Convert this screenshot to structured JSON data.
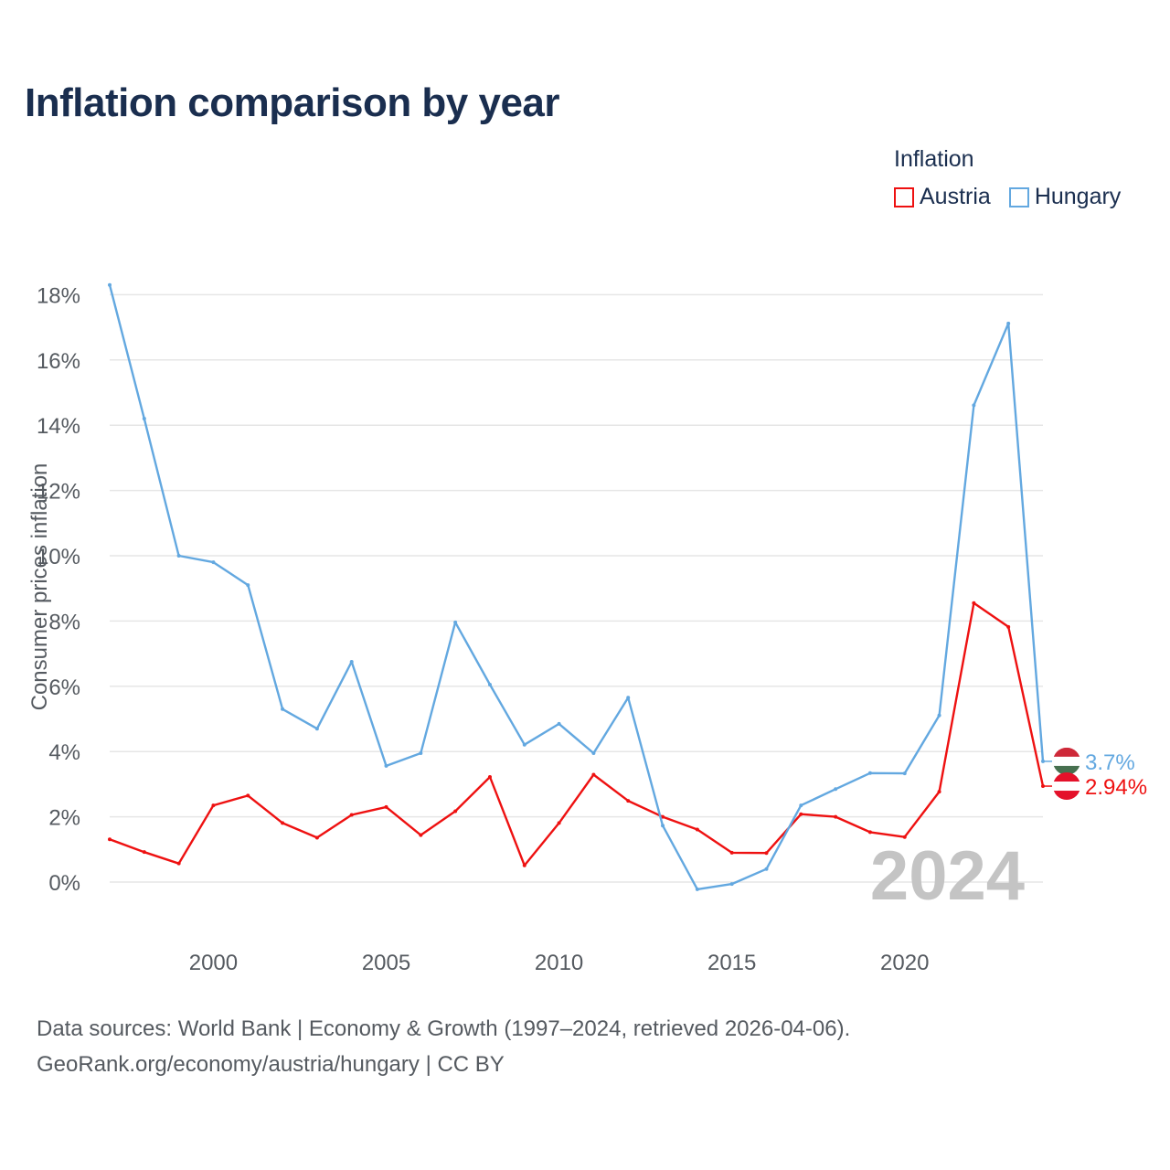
{
  "header": {
    "title": "Inflation comparison by year"
  },
  "legend": {
    "title": "Inflation",
    "items": [
      {
        "label": "Austria",
        "color": "#ee1111"
      },
      {
        "label": "Hungary",
        "color": "#63a8e0"
      }
    ]
  },
  "chart_data": {
    "type": "line",
    "title": "Inflation comparison by year",
    "xlabel": "",
    "ylabel": "Consumer prices inflation",
    "xlim": [
      1997,
      2024
    ],
    "ylim": [
      -1,
      18
    ],
    "x_ticks": [
      2000,
      2005,
      2010,
      2015,
      2020
    ],
    "y_ticks": [
      0,
      2,
      4,
      6,
      8,
      10,
      12,
      14,
      16,
      18
    ],
    "y_tick_suffix": "%",
    "grid": true,
    "legend_position": "top-right",
    "x": [
      1997,
      1998,
      1999,
      2000,
      2001,
      2002,
      2003,
      2004,
      2005,
      2006,
      2007,
      2008,
      2009,
      2010,
      2011,
      2012,
      2013,
      2014,
      2015,
      2016,
      2017,
      2018,
      2019,
      2020,
      2021,
      2022,
      2023,
      2024
    ],
    "series": [
      {
        "name": "Austria",
        "color": "#ee1111",
        "values": [
          1.31,
          0.92,
          0.57,
          2.35,
          2.65,
          1.81,
          1.36,
          2.06,
          2.3,
          1.44,
          2.17,
          3.22,
          0.51,
          1.81,
          3.29,
          2.49,
          2.0,
          1.61,
          0.9,
          0.89,
          2.08,
          2.0,
          1.53,
          1.38,
          2.77,
          8.55,
          7.82,
          2.94
        ],
        "end_label": "2.94%"
      },
      {
        "name": "Hungary",
        "color": "#63a8e0",
        "values": [
          18.3,
          14.2,
          10.0,
          9.8,
          9.1,
          5.3,
          4.7,
          6.75,
          3.56,
          3.95,
          7.96,
          6.05,
          4.21,
          4.85,
          3.95,
          5.65,
          1.73,
          -0.22,
          -0.06,
          0.4,
          2.35,
          2.85,
          3.34,
          3.33,
          5.11,
          14.61,
          17.12,
          3.7
        ],
        "end_label": "3.7%"
      }
    ],
    "annotations": {
      "year_watermark": "2024"
    }
  },
  "footer": {
    "source_line": "Data sources: World Bank | Economy & Growth (1997–2024, retrieved 2026-04-06).",
    "license_line": "GeoRank.org/economy/austria/hungary | CC BY"
  }
}
